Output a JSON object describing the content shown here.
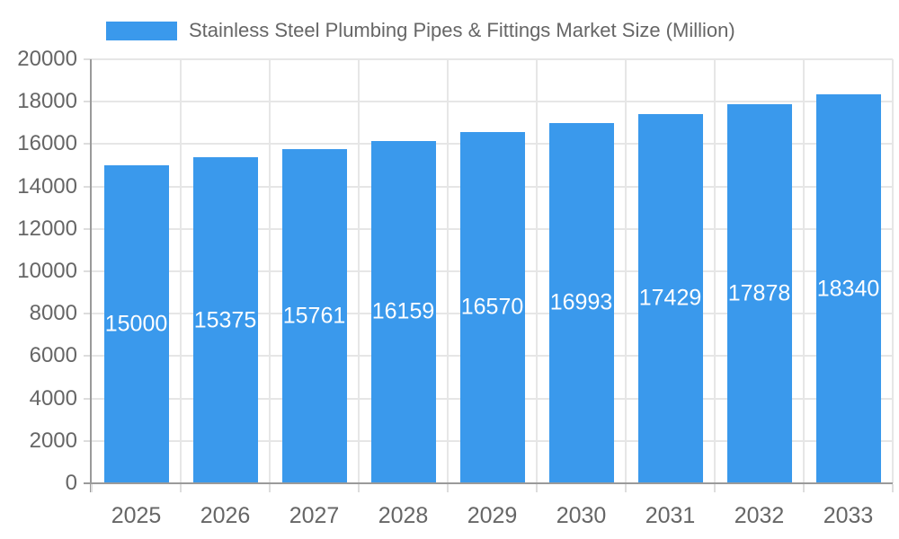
{
  "legend": {
    "series_label": "Stainless Steel Plumbing Pipes & Fittings Market Size (Million)"
  },
  "chart_data": {
    "type": "bar",
    "title": "Stainless Steel Plumbing Pipes & Fittings Market Size (Million)",
    "categories": [
      "2025",
      "2026",
      "2027",
      "2028",
      "2029",
      "2030",
      "2031",
      "2032",
      "2033"
    ],
    "values": [
      15000,
      15375,
      15761,
      16159,
      16570,
      16993,
      17429,
      17878,
      18340
    ],
    "value_labels": [
      "15000",
      "15375",
      "15761",
      "16159",
      "16570",
      "16993",
      "17429",
      "17878",
      "18340"
    ],
    "y_ticks": [
      0,
      2000,
      4000,
      6000,
      8000,
      10000,
      12000,
      14000,
      16000,
      18000,
      20000
    ],
    "ylim": [
      0,
      20000
    ],
    "xlabel": "",
    "ylabel": "",
    "legend_position": "top",
    "grid": true,
    "colors": {
      "bar": "#3A99EC",
      "value_label": "#FFFFFF",
      "axis_line": "#9A9A9A",
      "gridline": "#E6E6E6",
      "tick": "#DDDDDD",
      "text": "#666666",
      "background": "#FFFFFF"
    }
  }
}
